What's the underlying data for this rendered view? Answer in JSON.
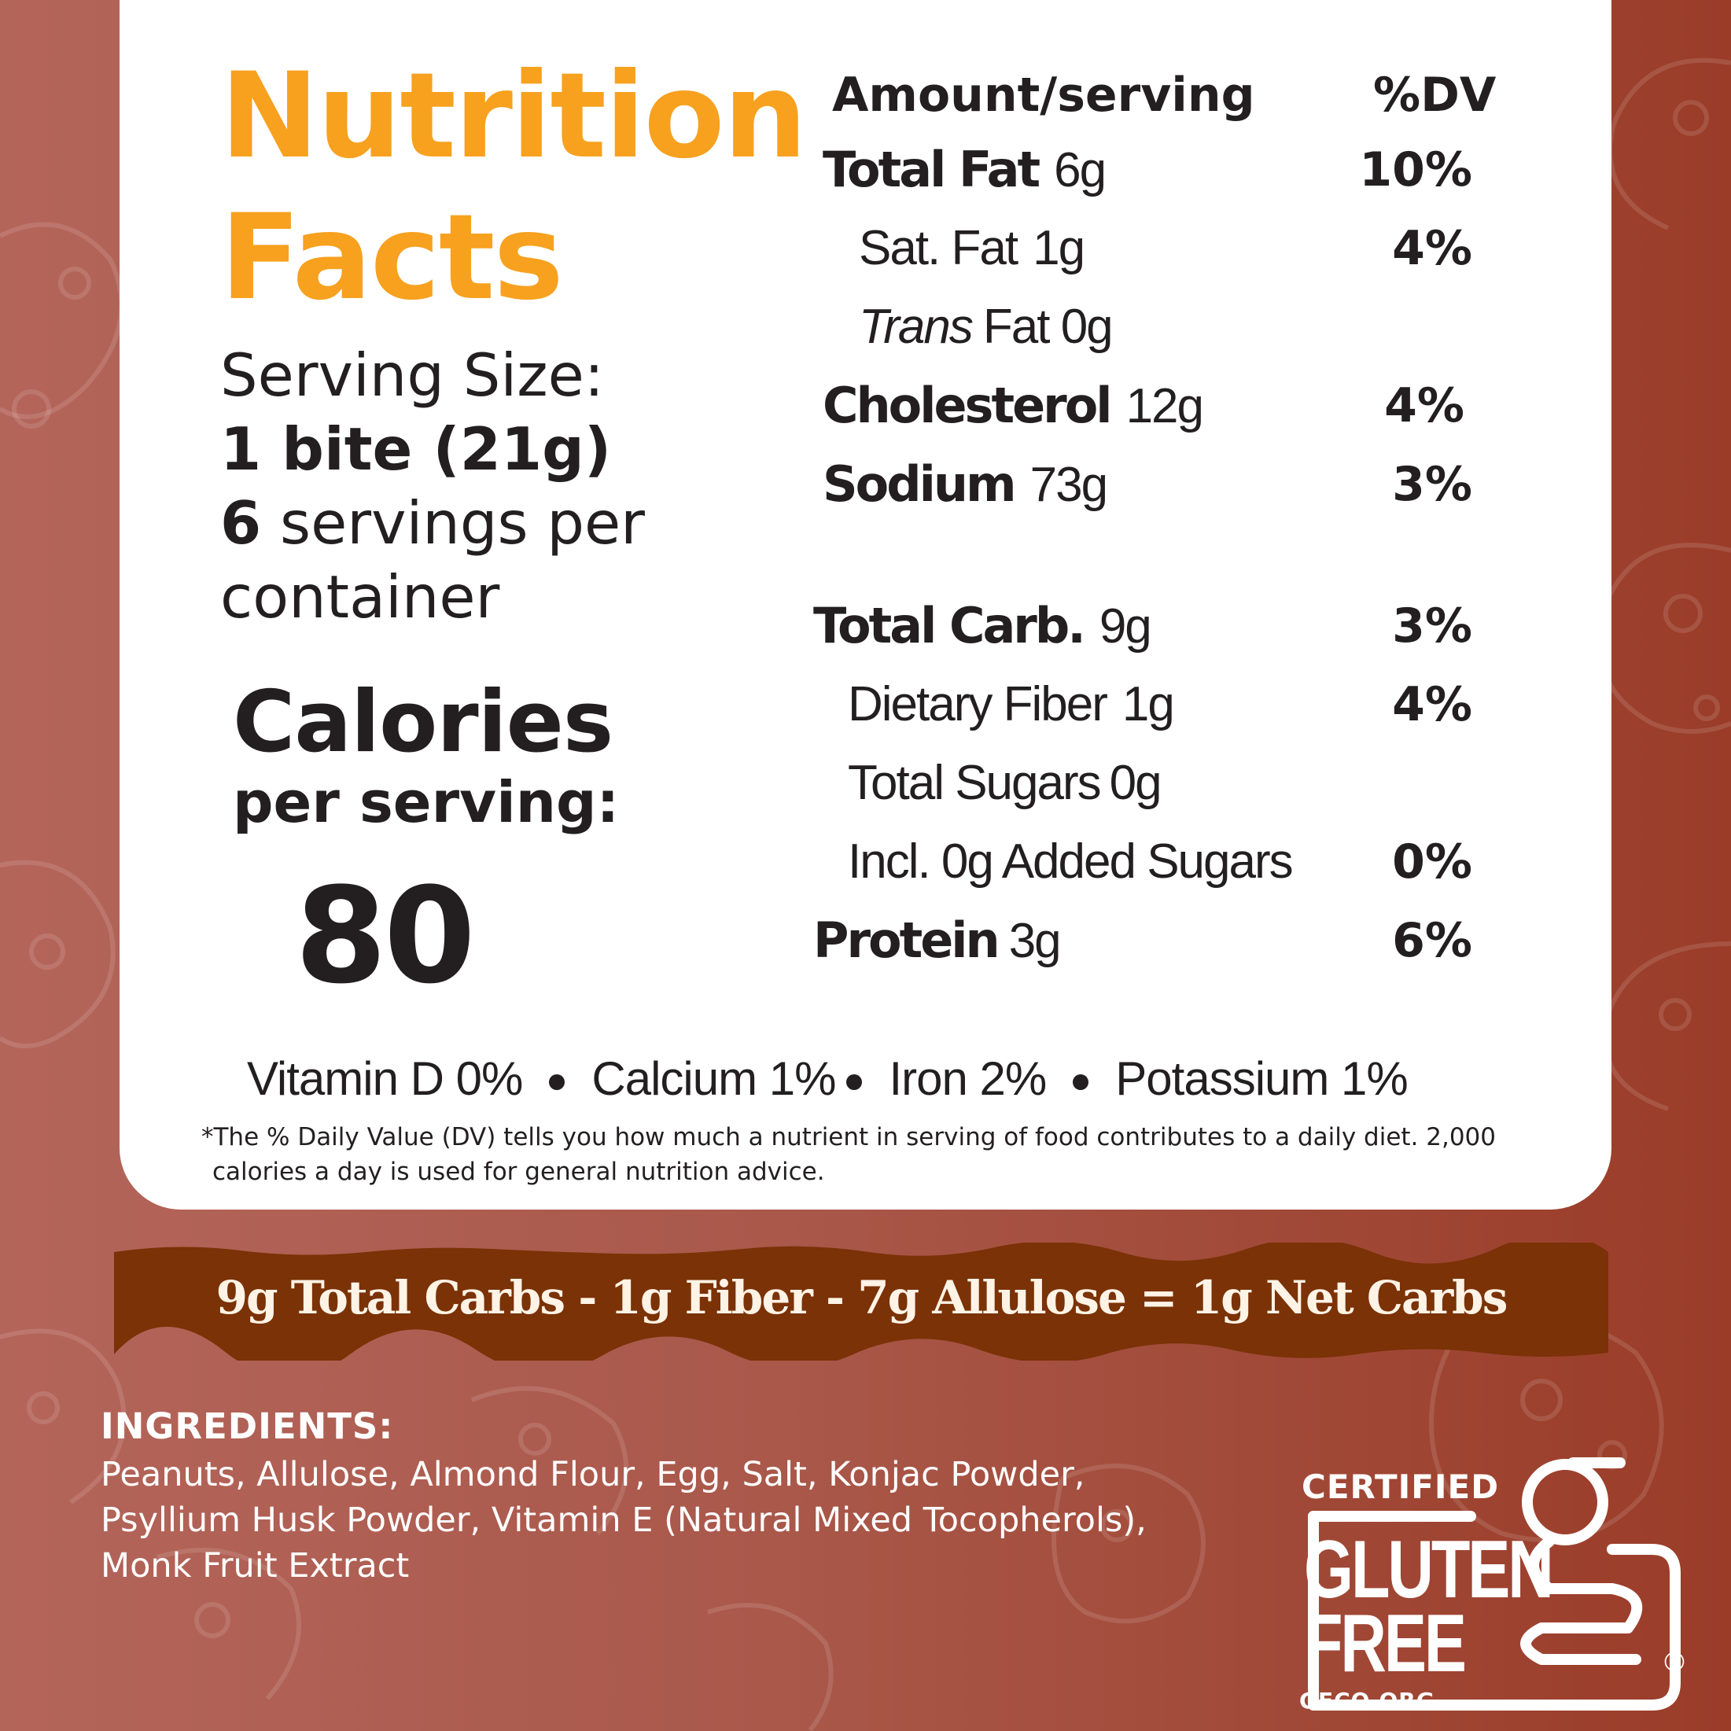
{
  "label": {
    "title_line1": "Nutrition",
    "title_line2": "Facts",
    "serving_size_label": "Serving Size:",
    "serving_size_value": "1 bite (21g)",
    "servings_count": "6",
    "servings_text_1": "servings per",
    "servings_text_2": "container",
    "calories_title": "Calories",
    "calories_subtitle": "per serving:",
    "calories_value": "80",
    "header_amount": "Amount/serving",
    "header_dv": "%DV",
    "rows": [
      {
        "name": "Total Fat",
        "amount": "6g",
        "dv": "10%"
      },
      {
        "name": "Sat. Fat",
        "amount": "1g",
        "dv": "4%"
      },
      {
        "name": "Trans",
        "amount": "Fat  0g",
        "dv": ""
      },
      {
        "name": "Cholesterol",
        "amount": "12g",
        "dv": "4%"
      },
      {
        "name": "Sodium",
        "amount": "73g",
        "dv": "3%"
      },
      {
        "name": "Total Carb.",
        "amount": "9g",
        "dv": "3%"
      },
      {
        "name": "Dietary Fiber",
        "amount": "1g",
        "dv": "4%"
      },
      {
        "name": "Total Sugars",
        "amount": "0g",
        "dv": ""
      },
      {
        "name": "Incl. 0g Added Sugars",
        "amount": "",
        "dv": "0%"
      },
      {
        "name": "Protein",
        "amount": "3g",
        "dv": "6%"
      }
    ],
    "vitamins": [
      "Vitamin D 0%",
      "Calcium 1%",
      "Iron 2%",
      "Potassium 1%"
    ],
    "footnote": "*The % Daily Value (DV) tells you how much a nutrient in serving of food contributes to a daily diet. 2,000 calories a day is used for general nutrition advice."
  },
  "net_carbs_banner": "9g  Total Carbs  -  1g Fiber -  7g Allulose = 1g Net Carbs",
  "ingredients": {
    "title": "INGREDIENTS:",
    "text": "Peanuts, Allulose, Almond Flour, Egg, Salt, Konjac Powder, Psyllium Husk Powder, Vitamin E (Natural Mixed Tocopherols), Monk Fruit Extract"
  },
  "gluten_free_logo": {
    "certified": "CERTIFIED",
    "gluten": "GLUTEN",
    "free": "FREE",
    "org": "GFCO.ORG",
    "registered": "®"
  },
  "colors": {
    "title_orange": "#f7a11f",
    "text_dark": "#231f20",
    "band_brown": "#7a3206",
    "background_red": "#a9584a"
  }
}
